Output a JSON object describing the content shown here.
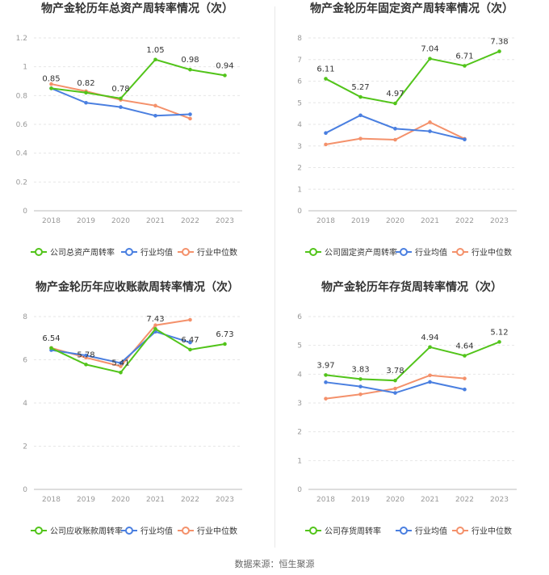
{
  "source_text": "数据来源：恒生聚源",
  "colors": {
    "company": "#52c41a",
    "industry_avg": "#4a7fe0",
    "industry_median": "#f4916b"
  },
  "chart_data": [
    {
      "type": "line",
      "title": "物产金轮历年总资产周转率情况（次）",
      "categories": [
        "2018",
        "2019",
        "2020",
        "2021",
        "2022",
        "2023"
      ],
      "ylim": [
        0,
        1.2
      ],
      "yticks": [
        0,
        0.2,
        0.4,
        0.6,
        0.8,
        1,
        1.2
      ],
      "ytick_labels": [
        "0",
        "0.2",
        "0.4",
        "0.6",
        "0.8",
        "1",
        "1.2"
      ],
      "series": [
        {
          "name": "公司总资产周转率",
          "key": "company",
          "values": [
            0.85,
            0.82,
            0.78,
            1.05,
            0.98,
            0.94
          ],
          "labels": [
            "0.85",
            "0.82",
            "0.78",
            "1.05",
            "0.98",
            "0.94"
          ]
        },
        {
          "name": "行业均值",
          "key": "industry_avg",
          "values": [
            0.85,
            0.75,
            0.72,
            0.66,
            0.67,
            null
          ]
        },
        {
          "name": "行业中位数",
          "key": "industry_median",
          "values": [
            0.88,
            0.83,
            0.77,
            0.73,
            0.64,
            null
          ]
        }
      ]
    },
    {
      "type": "line",
      "title": "物产金轮历年固定资产周转率情况（次）",
      "categories": [
        "2018",
        "2019",
        "2020",
        "2021",
        "2022",
        "2023"
      ],
      "ylim": [
        0,
        8
      ],
      "yticks": [
        0,
        1,
        2,
        3,
        4,
        5,
        6,
        7,
        8
      ],
      "ytick_labels": [
        "0",
        "1",
        "2",
        "3",
        "4",
        "5",
        "6",
        "7",
        "8"
      ],
      "series": [
        {
          "name": "公司固定资产周转率",
          "key": "company",
          "values": [
            6.11,
            5.27,
            4.97,
            7.04,
            6.71,
            7.38
          ],
          "labels": [
            "6.11",
            "5.27",
            "4.97",
            "7.04",
            "6.71",
            "7.38"
          ]
        },
        {
          "name": "行业均值",
          "key": "industry_avg",
          "values": [
            3.6,
            4.42,
            3.8,
            3.68,
            3.3,
            null
          ]
        },
        {
          "name": "行业中位数",
          "key": "industry_median",
          "values": [
            3.07,
            3.34,
            3.29,
            4.1,
            3.33,
            null
          ]
        }
      ]
    },
    {
      "type": "line",
      "title": "物产金轮历年应收账款周转率情况（次）",
      "categories": [
        "2018",
        "2019",
        "2020",
        "2021",
        "2022",
        "2023"
      ],
      "ylim": [
        0,
        8
      ],
      "yticks": [
        0,
        2,
        4,
        6,
        8
      ],
      "ytick_labels": [
        "0",
        "2",
        "4",
        "6",
        "8"
      ],
      "series": [
        {
          "name": "公司应收账款周转率",
          "key": "company",
          "values": [
            6.54,
            5.78,
            5.41,
            7.43,
            6.47,
            6.73
          ],
          "labels": [
            "6.54",
            "5.78",
            "5.41",
            "7.43",
            "6.47",
            "6.73"
          ]
        },
        {
          "name": "行业均值",
          "key": "industry_avg",
          "values": [
            6.45,
            6.2,
            5.85,
            7.3,
            6.8,
            null
          ]
        },
        {
          "name": "行业中位数",
          "key": "industry_median",
          "values": [
            6.55,
            6.1,
            5.7,
            7.6,
            7.85,
            null
          ]
        }
      ]
    },
    {
      "type": "line",
      "title": "物产金轮历年存货周转率情况（次）",
      "categories": [
        "2018",
        "2019",
        "2020",
        "2021",
        "2022",
        "2023"
      ],
      "ylim": [
        0,
        6
      ],
      "yticks": [
        0,
        1,
        2,
        3,
        4,
        5,
        6
      ],
      "ytick_labels": [
        "0",
        "1",
        "2",
        "3",
        "4",
        "5",
        "6"
      ],
      "series": [
        {
          "name": "公司存货周转率",
          "key": "company",
          "values": [
            3.97,
            3.83,
            3.78,
            4.94,
            4.64,
            5.12
          ],
          "labels": [
            "3.97",
            "3.83",
            "3.78",
            "4.94",
            "4.64",
            "5.12"
          ]
        },
        {
          "name": "行业均值",
          "key": "industry_avg",
          "values": [
            3.72,
            3.57,
            3.35,
            3.73,
            3.47,
            null
          ]
        },
        {
          "name": "行业中位数",
          "key": "industry_median",
          "values": [
            3.15,
            3.3,
            3.5,
            3.96,
            3.85,
            null
          ]
        }
      ]
    }
  ]
}
